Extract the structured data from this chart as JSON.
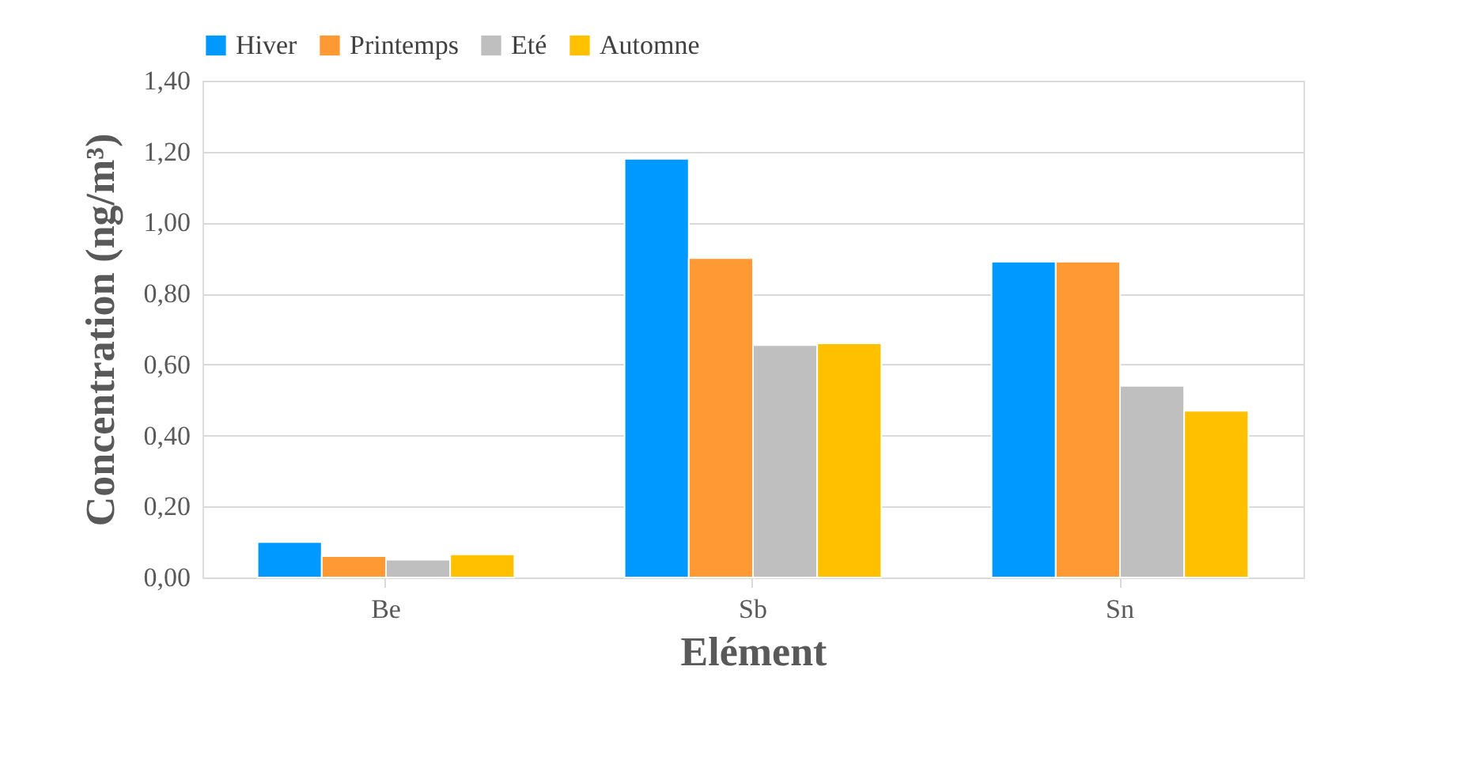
{
  "chart_data": {
    "type": "bar",
    "xlabel": "Elément",
    "ylabel": "Concentration (ng/m³)",
    "categories": [
      "Be",
      "Sb",
      "Sn"
    ],
    "series": [
      {
        "name": "Hiver",
        "color": "#0099ff",
        "values": [
          0.1,
          1.18,
          0.89
        ]
      },
      {
        "name": "Printemps",
        "color": "#ff9933",
        "values": [
          0.06,
          0.9,
          0.89
        ]
      },
      {
        "name": "Eté",
        "color": "#bfbfbf",
        "values": [
          0.05,
          0.655,
          0.54
        ]
      },
      {
        "name": "Automne",
        "color": "#ffc000",
        "values": [
          0.065,
          0.66,
          0.47
        ]
      }
    ],
    "ylim": [
      0,
      1.4
    ],
    "yticks": [
      {
        "value": 0,
        "label": "0,00"
      },
      {
        "value": 0.2,
        "label": "0,20"
      },
      {
        "value": 0.4,
        "label": "0,40"
      },
      {
        "value": 0.6,
        "label": "0,60"
      },
      {
        "value": 0.8,
        "label": "0,80"
      },
      {
        "value": 1.0,
        "label": "1,00"
      },
      {
        "value": 1.2,
        "label": "1,20"
      },
      {
        "value": 1.4,
        "label": "1,40"
      }
    ],
    "grid": "y",
    "legend": "top"
  }
}
